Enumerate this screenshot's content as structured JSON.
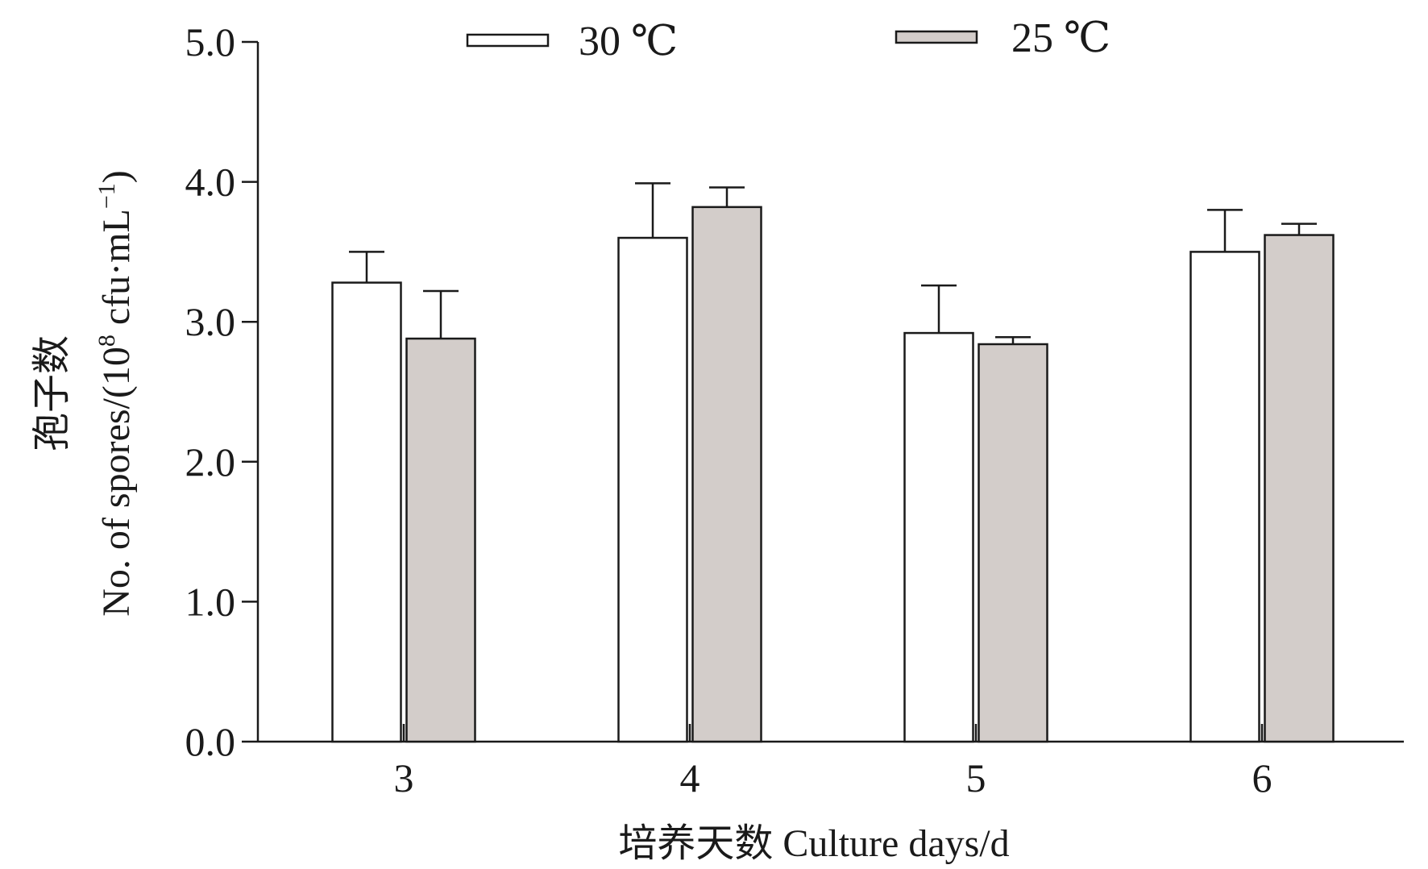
{
  "chart_data": {
    "type": "bar",
    "categories": [
      "3",
      "4",
      "5",
      "6"
    ],
    "series": [
      {
        "name": "30 ℃",
        "color": "#ffffff",
        "values": [
          3.28,
          3.6,
          2.92,
          3.5
        ],
        "errors": [
          0.22,
          0.39,
          0.34,
          0.3
        ]
      },
      {
        "name": "25 ℃",
        "color": "#d3cdca",
        "values": [
          2.88,
          3.82,
          2.84,
          3.62
        ],
        "errors": [
          0.34,
          0.14,
          0.05,
          0.08
        ]
      }
    ],
    "xlabel": "培养天数  Culture days/d",
    "ylabel_cn": "孢子数",
    "ylabel_main": "No. of spores/(10",
    "ylabel_exp1": "8",
    "ylabel_mid": " cfu·mL",
    "ylabel_exp2": "−1",
    "ylabel_end": ")",
    "ylim": [
      0,
      5
    ],
    "yticks": [
      "0.0",
      "1.0",
      "2.0",
      "3.0",
      "4.0",
      "5.0"
    ],
    "grid": false,
    "legend_position": "top"
  }
}
